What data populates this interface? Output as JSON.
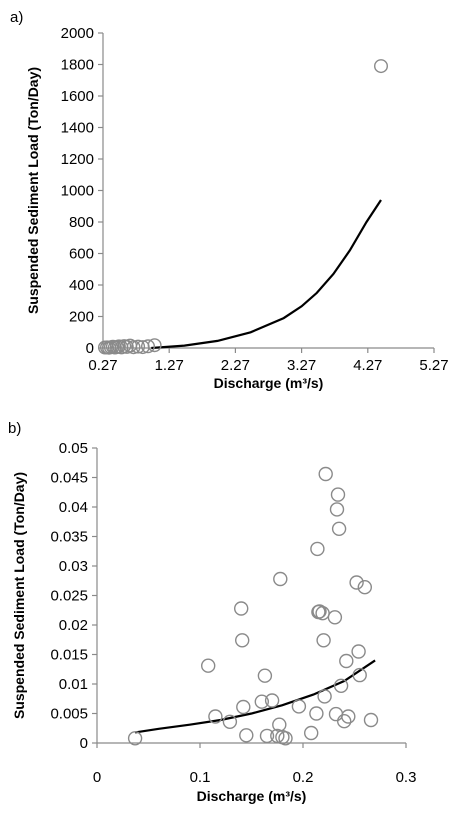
{
  "chart_data": [
    {
      "type": "scatter",
      "panel_label": "a)",
      "title": "",
      "xlabel": "Discharge (m³/s)",
      "ylabel": "Suspended Sediment Load (Ton/Day)",
      "xlim": [
        0.27,
        5.27
      ],
      "ylim": [
        0,
        2000
      ],
      "x_ticks": [
        "0.27",
        "1.27",
        "2.27",
        "3.27",
        "4.27",
        "5.27"
      ],
      "y_ticks": [
        "0",
        "200",
        "400",
        "600",
        "800",
        "1000",
        "1200",
        "1400",
        "1600",
        "1800",
        "2000"
      ],
      "grid": false,
      "legend": "none",
      "series": [
        {
          "kind": "observed",
          "marker": "open-circle",
          "color": "#8a8a8a",
          "x": [
            0.3,
            0.33,
            0.36,
            0.39,
            0.42,
            0.45,
            0.48,
            0.51,
            0.55,
            0.59,
            0.63,
            0.68,
            0.73,
            0.8,
            0.87,
            0.95,
            1.05,
            4.47
          ],
          "y": [
            3,
            4,
            2,
            5,
            8,
            3,
            6,
            10,
            4,
            12,
            7,
            15,
            5,
            9,
            6,
            11,
            18,
            1790
          ]
        },
        {
          "kind": "fitted",
          "line": "solid",
          "color": "#000000",
          "x": [
            1.0,
            1.5,
            2.0,
            2.5,
            3.0,
            3.27,
            3.5,
            3.75,
            4.0,
            4.25,
            4.47
          ],
          "y": [
            0,
            15,
            45,
            100,
            190,
            265,
            350,
            470,
            620,
            800,
            940
          ]
        }
      ]
    },
    {
      "type": "scatter",
      "panel_label": "b)",
      "title": "",
      "xlabel": "Discharge (m³/s)",
      "ylabel": "Suspended Sediment Load (Ton/Day)",
      "xlim": [
        0,
        0.3
      ],
      "ylim": [
        0,
        0.05
      ],
      "x_ticks": [
        "0",
        "0.1",
        "0.2",
        "0.3"
      ],
      "y_ticks": [
        "0",
        "0.005",
        "0.01",
        "0.015",
        "0.02",
        "0.025",
        "0.03",
        "0.035",
        "0.04",
        "0.045",
        "0.05"
      ],
      "grid": false,
      "legend": "none",
      "series": [
        {
          "kind": "observed",
          "marker": "open-circle",
          "color": "#8a8a8a",
          "x": [
            0.037,
            0.108,
            0.115,
            0.129,
            0.14,
            0.141,
            0.142,
            0.145,
            0.16,
            0.163,
            0.165,
            0.17,
            0.175,
            0.177,
            0.178,
            0.18,
            0.183,
            0.196,
            0.208,
            0.213,
            0.214,
            0.215,
            0.216,
            0.219,
            0.22,
            0.221,
            0.222,
            0.231,
            0.232,
            0.233,
            0.234,
            0.235,
            0.237,
            0.24,
            0.242,
            0.244,
            0.252,
            0.254,
            0.255,
            0.26,
            0.266
          ],
          "y": [
            0.0008,
            0.0131,
            0.0045,
            0.0036,
            0.0228,
            0.0174,
            0.0061,
            0.0013,
            0.007,
            0.0114,
            0.0012,
            0.0072,
            0.0012,
            0.0031,
            0.0278,
            0.001,
            0.0008,
            0.0062,
            0.0017,
            0.005,
            0.0329,
            0.0222,
            0.0223,
            0.022,
            0.0174,
            0.0079,
            0.0456,
            0.0213,
            0.0049,
            0.0396,
            0.0421,
            0.0363,
            0.0097,
            0.0037,
            0.0139,
            0.0045,
            0.0272,
            0.0155,
            0.0115,
            0.0264,
            0.0039
          ]
        },
        {
          "kind": "fitted",
          "line": "solid",
          "color": "#000000",
          "x": [
            0.037,
            0.06,
            0.09,
            0.12,
            0.15,
            0.18,
            0.21,
            0.24,
            0.27
          ],
          "y": [
            0.0018,
            0.0024,
            0.0031,
            0.0039,
            0.005,
            0.0064,
            0.0082,
            0.0105,
            0.014
          ]
        }
      ]
    }
  ]
}
